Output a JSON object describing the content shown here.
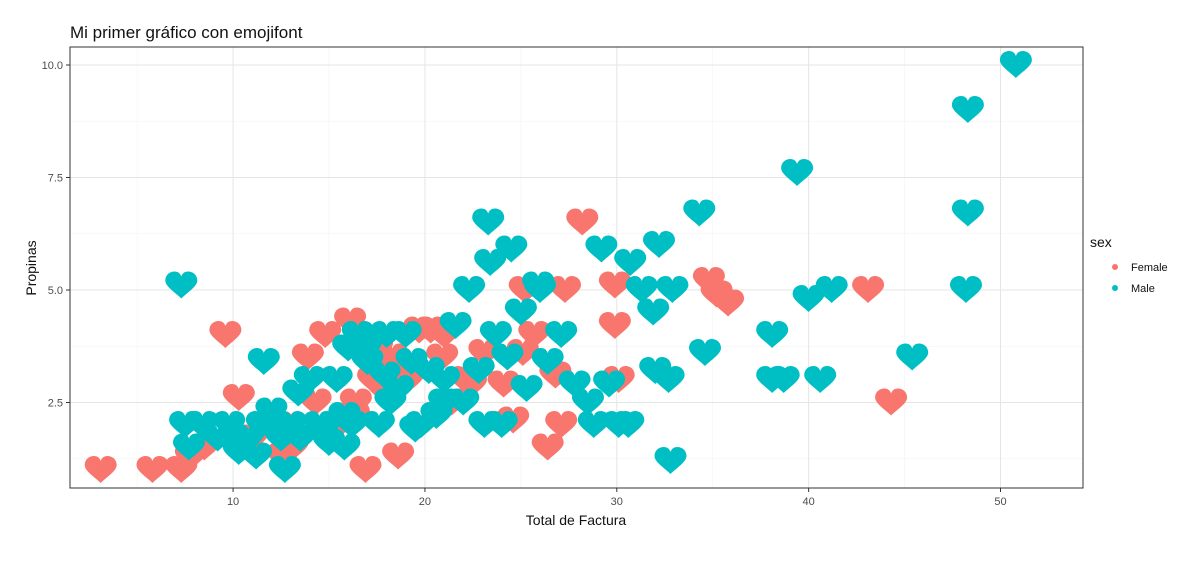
{
  "chart_data": {
    "type": "scatter",
    "title": "Mi primer gráfico con emojifont",
    "xlabel": "Total de Factura",
    "ylabel": "Propinas",
    "xlim": [
      1.5,
      54.3
    ],
    "ylim": [
      0.6,
      10.4
    ],
    "x_ticks": [
      10,
      20,
      30,
      40,
      50
    ],
    "y_ticks": [
      2.5,
      5.0,
      7.5,
      10.0
    ],
    "x_tick_labels": [
      "10",
      "20",
      "30",
      "40",
      "50"
    ],
    "y_tick_labels": [
      "2.5",
      "5.0",
      "7.5",
      "10.0"
    ],
    "marker": "heart",
    "grid": true,
    "legend": {
      "title": "sex",
      "position": "right"
    },
    "series": [
      {
        "name": "Female",
        "color": "#F8766D",
        "points": [
          [
            3.1,
            1.0
          ],
          [
            5.8,
            1.0
          ],
          [
            7.3,
            1.0
          ],
          [
            16.9,
            1.0
          ],
          [
            7.8,
            1.3
          ],
          [
            8.5,
            1.5
          ],
          [
            9.6,
            4.0
          ],
          [
            10.3,
            2.6
          ],
          [
            12.3,
            2.0
          ],
          [
            12.6,
            1.3
          ],
          [
            13.1,
            1.5
          ],
          [
            13.9,
            3.5
          ],
          [
            14.8,
            4.0
          ],
          [
            15.5,
            2.0
          ],
          [
            16.1,
            4.3
          ],
          [
            16.4,
            2.5
          ],
          [
            17.3,
            3.0
          ],
          [
            18.0,
            3.2
          ],
          [
            18.3,
            3.5
          ],
          [
            17.8,
            2.8
          ],
          [
            19.7,
            4.1
          ],
          [
            20.3,
            4.1
          ],
          [
            20.9,
            3.5
          ],
          [
            21.0,
            4.0
          ],
          [
            21.4,
            2.5
          ],
          [
            22.1,
            3.0
          ],
          [
            22.4,
            2.9
          ],
          [
            23.1,
            3.6
          ],
          [
            24.1,
            2.9
          ],
          [
            24.6,
            2.1
          ],
          [
            25.1,
            3.6
          ],
          [
            25.2,
            5.0
          ],
          [
            25.7,
            4.0
          ],
          [
            26.4,
            1.5
          ],
          [
            26.8,
            3.1
          ],
          [
            27.1,
            2.0
          ],
          [
            27.3,
            5.0
          ],
          [
            28.2,
            6.5
          ],
          [
            29.9,
            4.2
          ],
          [
            30.1,
            3.0
          ],
          [
            29.9,
            5.1
          ],
          [
            34.8,
            5.2
          ],
          [
            35.2,
            4.9
          ],
          [
            35.8,
            4.7
          ],
          [
            43.1,
            5.0
          ],
          [
            44.3,
            2.5
          ],
          [
            18.6,
            1.3
          ],
          [
            14.3,
            2.5
          ],
          [
            11.0,
            1.7
          ],
          [
            16.3,
            2.2
          ],
          [
            17.5,
            3.7
          ],
          [
            19.1,
            3.0
          ]
        ]
      },
      {
        "name": "Male",
        "color": "#00BFC4",
        "points": [
          [
            7.3,
            5.1
          ],
          [
            7.5,
            2.0
          ],
          [
            8.4,
            2.0
          ],
          [
            7.7,
            1.5
          ],
          [
            9.2,
            1.7
          ],
          [
            9.8,
            2.0
          ],
          [
            10.3,
            1.4
          ],
          [
            10.8,
            1.7
          ],
          [
            11.2,
            1.3
          ],
          [
            11.5,
            2.0
          ],
          [
            12.0,
            2.3
          ],
          [
            11.6,
            3.4
          ],
          [
            12.7,
            1.0
          ],
          [
            13.0,
            2.0
          ],
          [
            13.5,
            1.7
          ],
          [
            13.4,
            2.7
          ],
          [
            14.0,
            3.0
          ],
          [
            14.5,
            2.0
          ],
          [
            15.0,
            1.6
          ],
          [
            15.4,
            3.0
          ],
          [
            15.8,
            1.5
          ],
          [
            16.2,
            2.0
          ],
          [
            16.0,
            3.7
          ],
          [
            16.5,
            4.0
          ],
          [
            17.0,
            3.4
          ],
          [
            17.6,
            2.0
          ],
          [
            18.0,
            4.0
          ],
          [
            18.2,
            2.5
          ],
          [
            18.6,
            2.8
          ],
          [
            19.0,
            4.0
          ],
          [
            19.3,
            3.4
          ],
          [
            19.8,
            2.0
          ],
          [
            20.2,
            3.2
          ],
          [
            20.6,
            2.2
          ],
          [
            21.0,
            3.0
          ],
          [
            21.6,
            4.2
          ],
          [
            22.0,
            2.5
          ],
          [
            22.3,
            5.0
          ],
          [
            23.1,
            2.0
          ],
          [
            23.3,
            6.5
          ],
          [
            23.4,
            5.6
          ],
          [
            23.7,
            4.0
          ],
          [
            24.0,
            2.0
          ],
          [
            24.3,
            3.5
          ],
          [
            24.5,
            5.9
          ],
          [
            25.0,
            4.5
          ],
          [
            25.3,
            2.8
          ],
          [
            25.9,
            5.1
          ],
          [
            26.4,
            3.4
          ],
          [
            27.1,
            4.0
          ],
          [
            27.8,
            2.9
          ],
          [
            28.5,
            2.5
          ],
          [
            28.8,
            2.0
          ],
          [
            29.2,
            5.9
          ],
          [
            29.6,
            2.9
          ],
          [
            30.1,
            2.0
          ],
          [
            30.7,
            5.6
          ],
          [
            30.6,
            2.0
          ],
          [
            31.3,
            5.0
          ],
          [
            31.9,
            4.5
          ],
          [
            32.0,
            3.2
          ],
          [
            32.2,
            6.0
          ],
          [
            32.7,
            3.0
          ],
          [
            32.8,
            1.2
          ],
          [
            32.9,
            5.0
          ],
          [
            34.3,
            6.7
          ],
          [
            34.6,
            3.6
          ],
          [
            38.1,
            4.0
          ],
          [
            38.1,
            3.0
          ],
          [
            38.7,
            3.0
          ],
          [
            39.4,
            7.6
          ],
          [
            40.0,
            4.8
          ],
          [
            40.6,
            3.0
          ],
          [
            41.2,
            5.0
          ],
          [
            45.4,
            3.5
          ],
          [
            48.3,
            9.0
          ],
          [
            48.3,
            6.7
          ],
          [
            48.2,
            5.0
          ],
          [
            50.8,
            10.0
          ],
          [
            12.5,
            1.7
          ],
          [
            14.7,
            1.9
          ],
          [
            17.9,
            3.1
          ],
          [
            19.5,
            1.9
          ],
          [
            21.0,
            2.5
          ],
          [
            10.6,
            1.6
          ],
          [
            15.8,
            2.2
          ],
          [
            16.9,
            3.7
          ],
          [
            22.8,
            3.2
          ],
          [
            26.0,
            5.0
          ]
        ]
      }
    ]
  }
}
